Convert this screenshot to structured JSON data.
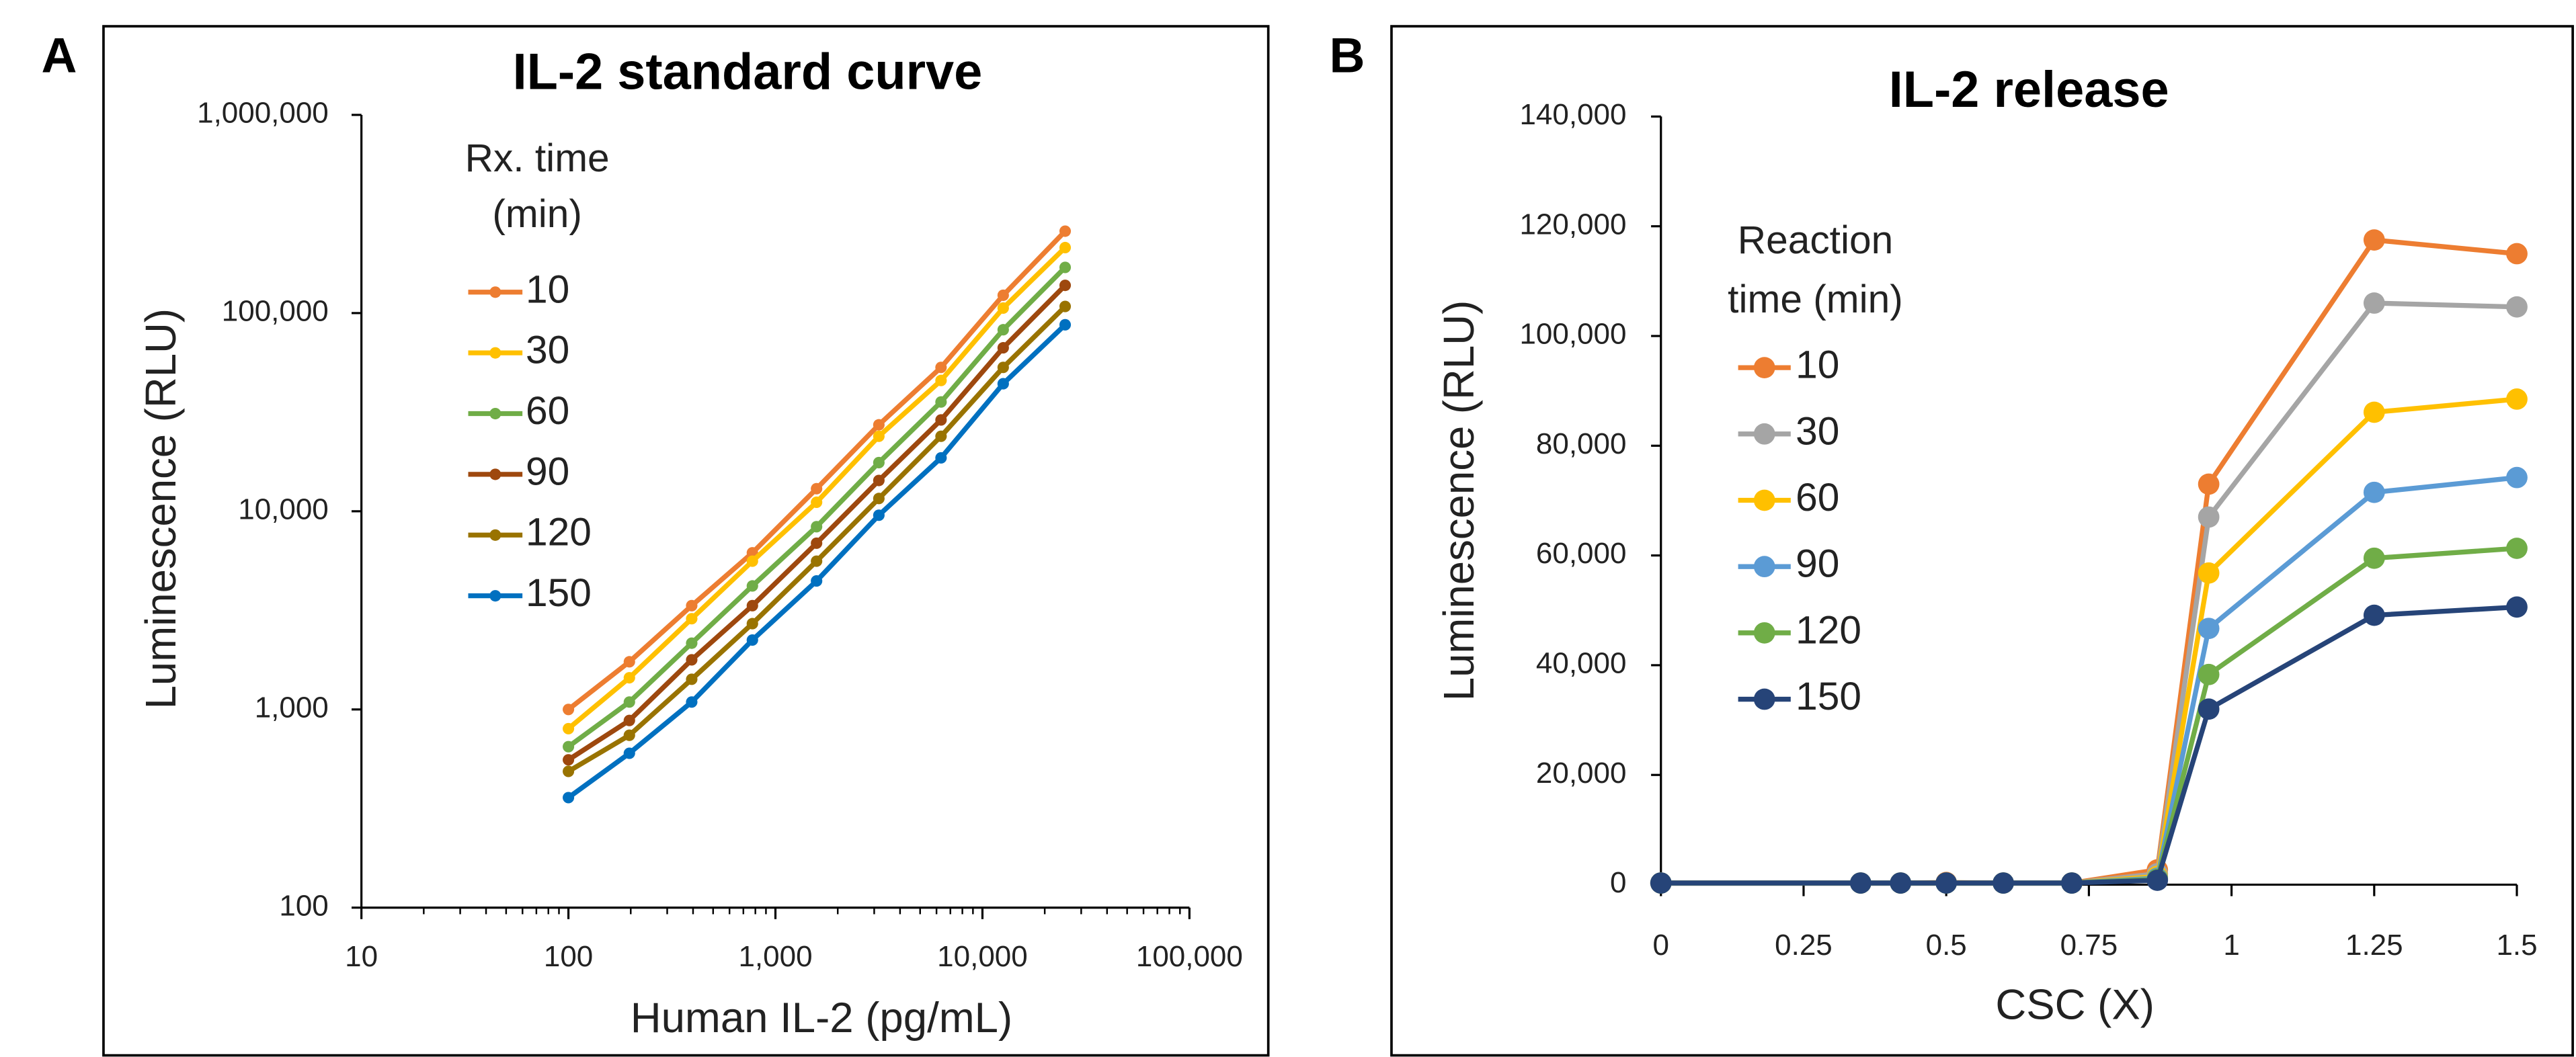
{
  "chart_data": [
    {
      "type": "line",
      "panel_label": "A",
      "title": "IL-2 standard curve",
      "x_label": "Human IL-2 (pg/mL)",
      "y_label": "Luminescence (RLU)",
      "log_x": true,
      "log_y": true,
      "x_minor_ticks": true,
      "marker_size": 3.5,
      "legend_title": [
        "Rx. time",
        "(min)"
      ],
      "xlim": [
        10,
        100000
      ],
      "xticks": [
        10,
        100,
        {
          "value": 1000,
          "label": "1,000"
        },
        {
          "value": 10000,
          "label": "10,000"
        },
        {
          "value": 100000,
          "label": "100,000"
        }
      ],
      "ylim": [
        100,
        1000000
      ],
      "yticks": [
        100,
        {
          "value": 1000,
          "label": "1,000"
        },
        {
          "value": 10000,
          "label": "10,000"
        },
        {
          "value": 100000,
          "label": "100,000"
        },
        {
          "value": 1000000,
          "label": "1,000,000"
        }
      ],
      "x": [
        100,
        197,
        394,
        774,
        1580,
        3160,
        6310,
        12600,
        25100
      ],
      "series": [
        {
          "name": "10",
          "color": "#ed7d31",
          "values": [
            1000,
            1740,
            3340,
            6170,
            13000,
            27300,
            53200,
            123000,
            259000
          ]
        },
        {
          "name": "30",
          "color": "#ffc000",
          "values": [
            800,
            1445,
            2870,
            5600,
            11100,
            23900,
            45700,
            106000,
            214000
          ]
        },
        {
          "name": "60",
          "color": "#70ad47",
          "values": [
            649,
            1090,
            2160,
            4200,
            8360,
            17600,
            35600,
            82400,
            170000
          ]
        },
        {
          "name": "90",
          "color": "#9e480e",
          "values": [
            557,
            880,
            1780,
            3340,
            6900,
            14300,
            28900,
            66800,
            138000
          ]
        },
        {
          "name": "120",
          "color": "#997300",
          "values": [
            487,
            741,
            1420,
            2710,
            5600,
            11600,
            23900,
            53200,
            108000
          ]
        },
        {
          "name": "150",
          "color": "#0070c0",
          "values": [
            359,
            601,
            1090,
            2240,
            4450,
            9550,
            18600,
            44000,
            87300
          ]
        }
      ]
    },
    {
      "type": "line",
      "panel_label": "B",
      "title": "IL-2 release",
      "x_label": "CSC (X)",
      "y_label": "Luminescence (RLU)",
      "marker_size": 6.5,
      "legend_title": [
        "Reaction",
        "time (min)"
      ],
      "xlim": [
        0,
        1.5
      ],
      "xticks": [
        0,
        0.25,
        0.5,
        0.75,
        1,
        1.25,
        1.5
      ],
      "ylim": [
        0,
        140000
      ],
      "yticks": [
        0,
        {
          "value": 20000,
          "label": "20,000"
        },
        {
          "value": 40000,
          "label": "40,000"
        },
        {
          "value": 60000,
          "label": "60,000"
        },
        {
          "value": 80000,
          "label": "80,000"
        },
        {
          "value": 100000,
          "label": "100,000"
        },
        {
          "value": 120000,
          "label": "120,000"
        },
        {
          "value": 140000,
          "label": "140,000"
        }
      ],
      "x": [
        0,
        0.35,
        0.42,
        0.5,
        0.6,
        0.72,
        0.87,
        0.96,
        1.25,
        1.5
      ],
      "series": [
        {
          "name": "10",
          "color": "#ed7d31",
          "values": [
            300,
            300,
            300,
            400,
            300,
            300,
            2700,
            73000,
            117500,
            115000
          ]
        },
        {
          "name": "30",
          "color": "#a5a5a5",
          "values": [
            300,
            300,
            300,
            300,
            300,
            300,
            2000,
            67000,
            106000,
            105300
          ]
        },
        {
          "name": "60",
          "color": "#ffc000",
          "values": [
            300,
            300,
            300,
            300,
            300,
            300,
            1500,
            56800,
            86100,
            88500
          ]
        },
        {
          "name": "90",
          "color": "#5b9bd5",
          "values": [
            300,
            300,
            300,
            300,
            300,
            300,
            1200,
            46700,
            71500,
            74200
          ]
        },
        {
          "name": "120",
          "color": "#70ad47",
          "values": [
            300,
            300,
            300,
            300,
            300,
            300,
            1000,
            38300,
            59500,
            61300
          ]
        },
        {
          "name": "150",
          "color": "#264478",
          "values": [
            300,
            300,
            300,
            300,
            300,
            300,
            800,
            32000,
            49100,
            50600
          ]
        }
      ]
    }
  ]
}
